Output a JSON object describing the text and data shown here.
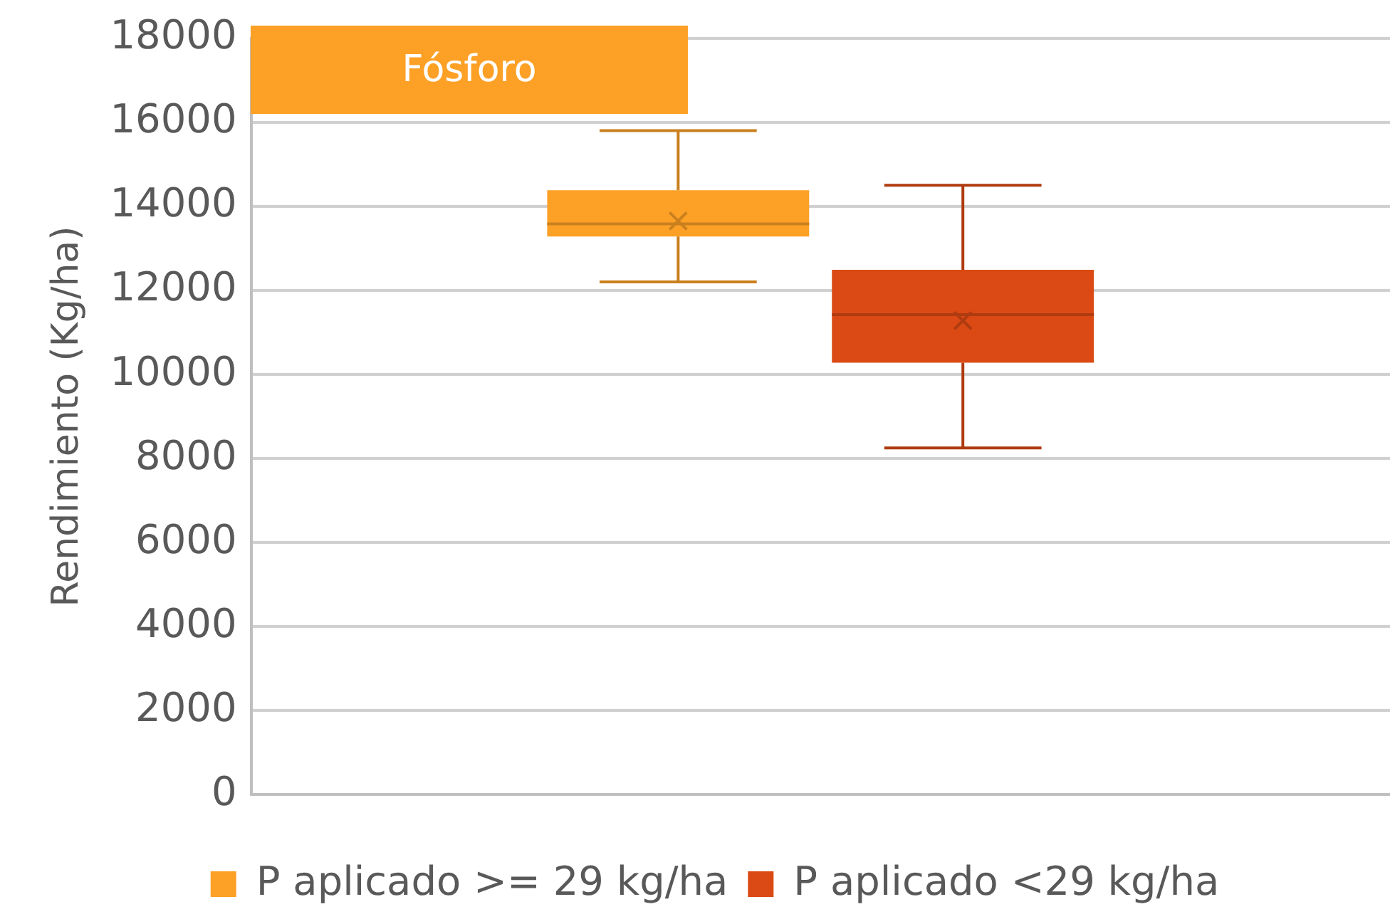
{
  "chart_data": {
    "type": "box",
    "title": "Fósforo",
    "ylabel": "Rendimiento (Kg/ha)",
    "categories": [
      null
    ],
    "series": [
      {
        "name": "P aplicado >= 29 kg/ha",
        "color": "#fda026",
        "boxes": [
          {
            "low": 12200,
            "q1": 13280,
            "median": 13580,
            "q3": 14380,
            "high": 15800,
            "mean": 13650
          }
        ]
      },
      {
        "name": "P aplicado <29 kg/ha",
        "color": "#db4a14",
        "boxes": [
          {
            "low": 8250,
            "q1": 10280,
            "median": 11420,
            "q3": 12490,
            "high": 14500,
            "mean": 11280
          }
        ]
      }
    ],
    "ylim": [
      0,
      18000
    ],
    "yticks": [
      0,
      2000,
      4000,
      6000,
      8000,
      10000,
      12000,
      14000,
      16000,
      18000
    ],
    "grid": "y",
    "legend": "bottom"
  }
}
